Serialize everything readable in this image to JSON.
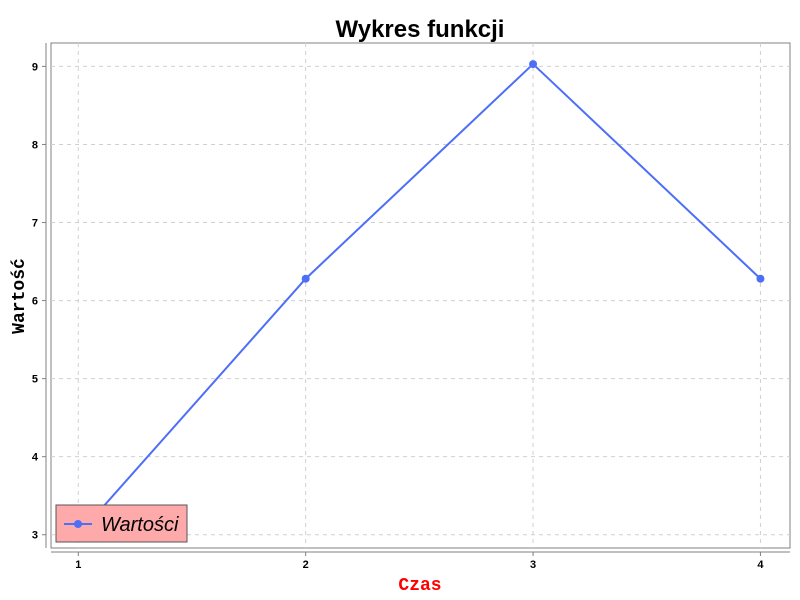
{
  "chart_data": {
    "type": "line",
    "title": "Wykres funkcji",
    "xlabel": "Czas",
    "ylabel": "Wartość",
    "x": [
      1,
      2,
      3,
      4
    ],
    "xticks": [
      "1",
      "2",
      "3",
      "4"
    ],
    "yticks": [
      "3",
      "4",
      "5",
      "6",
      "7",
      "8",
      "9"
    ],
    "xlim": [
      0.88,
      4.13
    ],
    "ylim": [
      2.83,
      9.3
    ],
    "grid": true,
    "legend_position": "bottom-left",
    "series": [
      {
        "name": "Wartości",
        "values": [
          3.0,
          6.28,
          9.03,
          6.28
        ],
        "color": "#4d6ef7"
      }
    ],
    "colors": {
      "xlabel": "#ff0000",
      "legend_background": "#ffaaaa",
      "grid": "#d0d0d0"
    }
  }
}
